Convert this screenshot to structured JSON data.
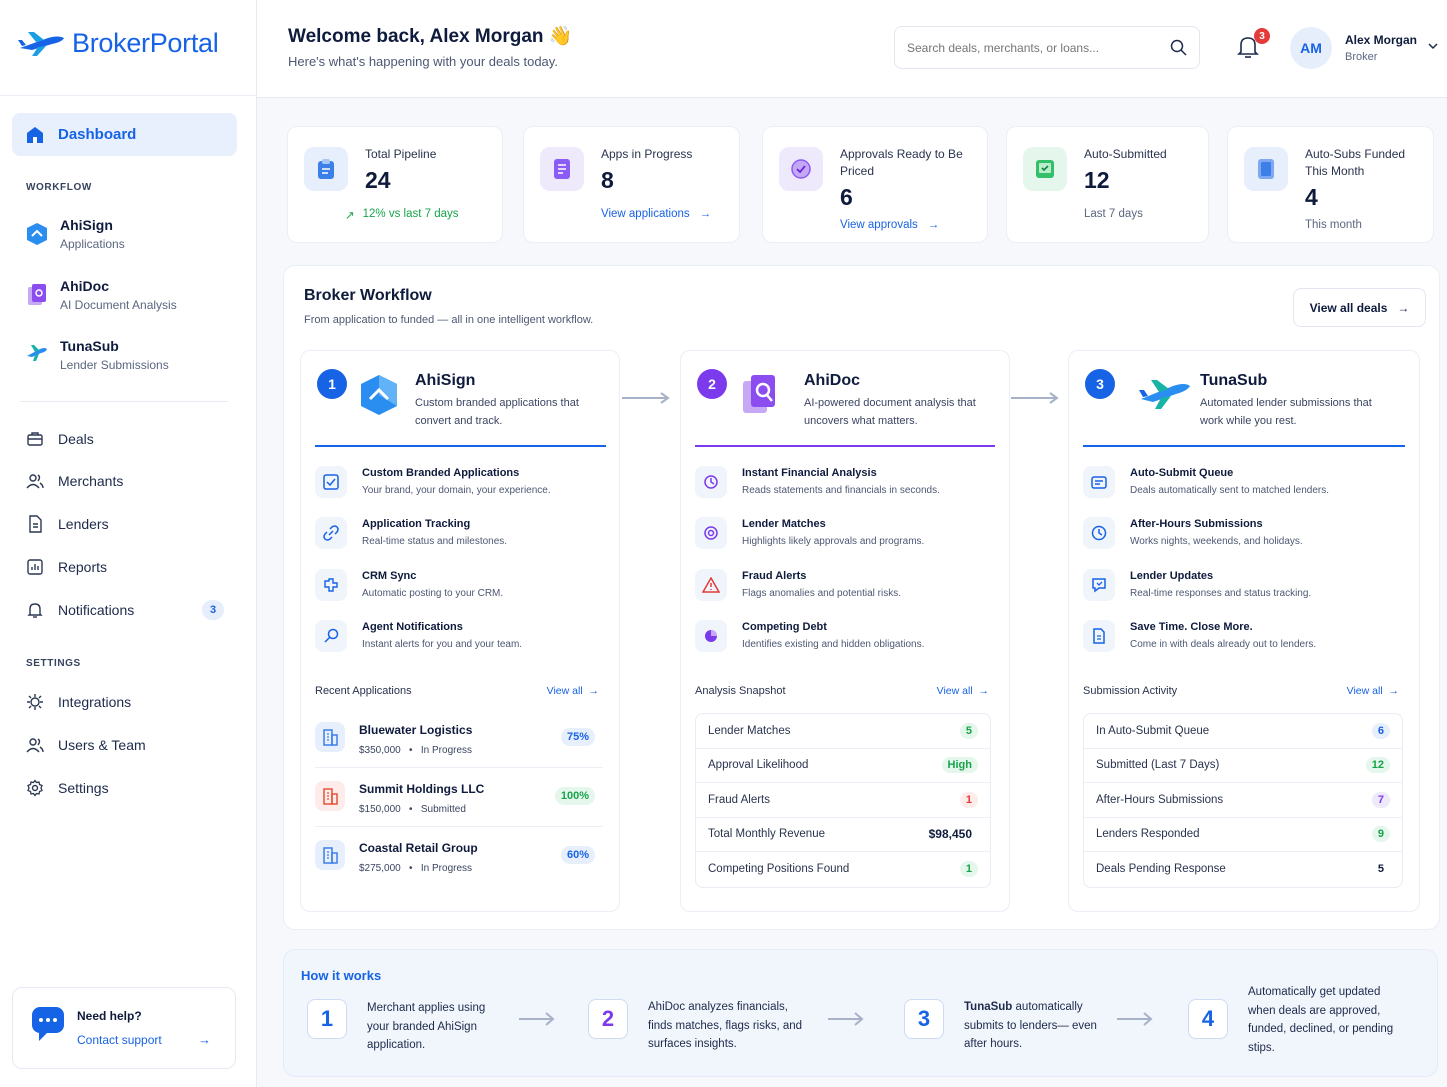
{
  "brand": {
    "name": "BrokerPortal"
  },
  "sidebar": {
    "dashboard": "Dashboard",
    "workflow_label": "WORKFLOW",
    "workflow": [
      {
        "title": "AhiSign",
        "subtitle": "Applications"
      },
      {
        "title": "AhiDoc",
        "subtitle": "AI Document Analysis"
      },
      {
        "title": "TunaSub",
        "subtitle": "Lender Submissions"
      }
    ],
    "nav": [
      {
        "label": "Deals",
        "icon": "briefcase-icon"
      },
      {
        "label": "Merchants",
        "icon": "users-icon"
      },
      {
        "label": "Lenders",
        "icon": "document-icon"
      },
      {
        "label": "Reports",
        "icon": "chart-icon"
      },
      {
        "label": "Notifications",
        "icon": "bell-icon",
        "badge": "3"
      }
    ],
    "settings_label": "SETTINGS",
    "settings": [
      {
        "label": "Integrations",
        "icon": "puzzle-icon"
      },
      {
        "label": "Users & Team",
        "icon": "users-icon"
      },
      {
        "label": "Settings",
        "icon": "gear-icon"
      }
    ],
    "help": {
      "title": "Need help?",
      "link": "Contact support"
    }
  },
  "header": {
    "welcome": "Welcome back, Alex Morgan 👋",
    "subtitle": "Here's what's happening with your deals today.",
    "search_placeholder": "Search deals, merchants, or loans...",
    "notif_count": "3",
    "user": {
      "initials": "AM",
      "name": "Alex Morgan",
      "role": "Broker"
    }
  },
  "stats": [
    {
      "label": "Total Pipeline",
      "value": "24",
      "footer": "12% vs last 7 days"
    },
    {
      "label": "Apps in Progress",
      "value": "8",
      "footer": "View applications"
    },
    {
      "label": "Approvals Ready to Be Priced",
      "value": "6",
      "footer": "View approvals"
    },
    {
      "label": "Auto-Submitted",
      "value": "12",
      "footer": "Last 7 days"
    },
    {
      "label": "Auto-Subs Funded This Month",
      "value": "4",
      "footer": "This month"
    }
  ],
  "workflow": {
    "title": "Broker Workflow",
    "subtitle": "From application to funded — all in one intelligent workflow.",
    "view_all": "View all deals",
    "columns": [
      {
        "num": "1",
        "name": "AhiSign",
        "desc": "Custom branded applications that convert and track.",
        "features": [
          {
            "title": "Custom Branded Applications",
            "sub": "Your brand, your domain, your experience."
          },
          {
            "title": "Application Tracking",
            "sub": "Real-time status and milestones."
          },
          {
            "title": "CRM Sync",
            "sub": "Automatic posting to your CRM."
          },
          {
            "title": "Agent Notifications",
            "sub": "Instant alerts for you and your team."
          }
        ],
        "section": "Recent Applications",
        "view_all": "View all",
        "apps": [
          {
            "name": "Bluewater Logistics",
            "amount": "$350,000",
            "status": "In Progress",
            "pct": "75%"
          },
          {
            "name": "Summit Holdings LLC",
            "amount": "$150,000",
            "status": "Submitted",
            "pct": "100%"
          },
          {
            "name": "Coastal Retail Group",
            "amount": "$275,000",
            "status": "In Progress",
            "pct": "60%"
          }
        ]
      },
      {
        "num": "2",
        "name": "AhiDoc",
        "desc": "AI-powered document analysis that uncovers what matters.",
        "features": [
          {
            "title": "Instant Financial Analysis",
            "sub": "Reads statements and financials in seconds."
          },
          {
            "title": "Lender Matches",
            "sub": "Highlights likely approvals and programs."
          },
          {
            "title": "Fraud Alerts",
            "sub": "Flags anomalies and potential risks."
          },
          {
            "title": "Competing Debt",
            "sub": "Identifies existing and hidden obligations."
          }
        ],
        "section": "Analysis Snapshot",
        "view_all": "View all",
        "rows": [
          {
            "label": "Lender Matches",
            "value": "5"
          },
          {
            "label": "Approval Likelihood",
            "value": "High"
          },
          {
            "label": "Fraud Alerts",
            "value": "1"
          },
          {
            "label": "Total Monthly Revenue",
            "value": "$98,450"
          },
          {
            "label": "Competing Positions Found",
            "value": "1"
          }
        ]
      },
      {
        "num": "3",
        "name": "TunaSub",
        "desc": "Automated lender submissions that work while you rest.",
        "features": [
          {
            "title": "Auto-Submit Queue",
            "sub": "Deals automatically sent to matched lenders."
          },
          {
            "title": "After-Hours Submissions",
            "sub": "Works nights, weekends, and holidays."
          },
          {
            "title": "Lender Updates",
            "sub": "Real-time responses and status tracking."
          },
          {
            "title": "Save Time. Close More.",
            "sub": "Come in with deals already out to lenders."
          }
        ],
        "section": "Submission Activity",
        "view_all": "View all",
        "rows": [
          {
            "label": "In Auto-Submit Queue",
            "value": "6"
          },
          {
            "label": "Submitted (Last 7 Days)",
            "value": "12"
          },
          {
            "label": "After-Hours Submissions",
            "value": "7"
          },
          {
            "label": "Lenders Responded",
            "value": "9"
          },
          {
            "label": "Deals Pending Response",
            "value": "5"
          }
        ]
      }
    ]
  },
  "how": {
    "title": "How it works",
    "steps": [
      {
        "num": "1",
        "bold": "",
        "text": "Merchant applies using your branded AhiSign application."
      },
      {
        "num": "2",
        "bold": "",
        "text": "AhiDoc analyzes financials, finds matches, flags risks, and surfaces insights."
      },
      {
        "num": "3",
        "bold": "TunaSub",
        "text": " automatically submits to lenders— even after hours."
      },
      {
        "num": "4",
        "bold": "",
        "text": "Automatically get updated when deals are approved, funded, declined, or pending stips."
      }
    ]
  },
  "colors": {
    "blue": "#1763e6",
    "purple": "#7c3aed",
    "green": "#17a34a",
    "red": "#e53a3a"
  }
}
